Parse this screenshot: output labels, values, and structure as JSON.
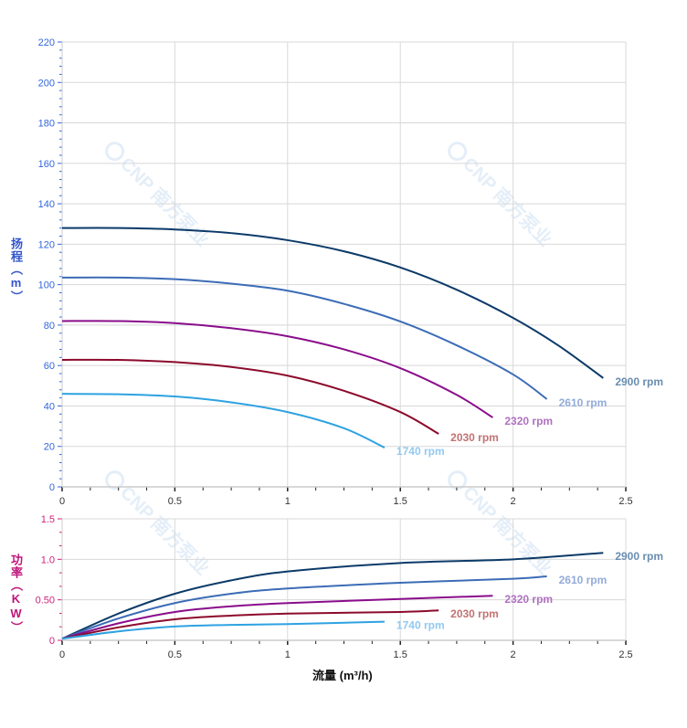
{
  "watermark": "CNP 南方泵业",
  "colors": {
    "grid": "#d8d8d8",
    "head_axis": "#3366dd",
    "power_axis": "#d0207a",
    "x_tick": "#333333"
  },
  "chart_data": [
    {
      "type": "line",
      "ylabel": "扬程（m）",
      "xlim": [
        0,
        2.5
      ],
      "ylim": [
        0,
        220
      ],
      "xticks": [
        "0",
        "0.5",
        "1",
        "1.5",
        "2",
        "2.5"
      ],
      "yticks": [
        "0",
        "20",
        "40",
        "60",
        "80",
        "100",
        "120",
        "140",
        "160",
        "180",
        "200",
        "220"
      ],
      "grid": true,
      "series": [
        {
          "name": "2900 rpm",
          "color": "#0b3a68",
          "label_color": "#6a8db0",
          "x": [
            0,
            0.25,
            0.5,
            0.75,
            1.0,
            1.25,
            1.5,
            1.75,
            2.0,
            2.2,
            2.4
          ],
          "y": [
            128,
            128,
            127.3,
            125.5,
            122,
            116.5,
            108.5,
            97.5,
            83.6,
            70,
            53.8
          ]
        },
        {
          "name": "2610 rpm",
          "color": "#3c6cb6",
          "label_color": "#93abd8",
          "x": [
            0,
            0.25,
            0.5,
            0.75,
            1.0,
            1.25,
            1.5,
            1.75,
            2.0,
            2.15
          ],
          "y": [
            103.5,
            103.5,
            102.7,
            100.5,
            97,
            90.5,
            81.8,
            70,
            55.6,
            43.4
          ]
        },
        {
          "name": "2320 rpm",
          "color": "#8a0c8c",
          "label_color": "#b071c0",
          "x": [
            0,
            0.25,
            0.5,
            0.75,
            1.0,
            1.25,
            1.5,
            1.75,
            1.91
          ],
          "y": [
            82,
            82,
            81,
            78.5,
            74.5,
            68,
            58.7,
            45.5,
            34.3
          ]
        },
        {
          "name": "2030 rpm",
          "color": "#8c0a2c",
          "label_color": "#c27272",
          "x": [
            0,
            0.25,
            0.5,
            0.75,
            1.0,
            1.25,
            1.5,
            1.67
          ],
          "y": [
            62.8,
            62.8,
            61.7,
            59.3,
            55,
            47.5,
            37,
            26.2
          ]
        },
        {
          "name": "1740 rpm",
          "color": "#2ea2e2",
          "label_color": "#92c9f0",
          "x": [
            0,
            0.25,
            0.5,
            0.75,
            1.0,
            1.25,
            1.43
          ],
          "y": [
            46,
            45.8,
            44.7,
            41.8,
            37,
            29,
            19.4
          ]
        }
      ]
    },
    {
      "type": "line",
      "xlabel": "流量 (m³/h)",
      "ylabel": "功率（KW）",
      "xlim": [
        0,
        2.5
      ],
      "ylim": [
        0,
        1.5
      ],
      "xticks": [
        "0",
        "0.5",
        "1",
        "1.5",
        "2",
        "2.5"
      ],
      "yticks": [
        "0",
        "0.50",
        "1.0",
        "1.5"
      ],
      "grid": true,
      "series": [
        {
          "name": "2900 rpm",
          "color": "#0b3a68",
          "label_color": "#6a8db0",
          "x": [
            0,
            0.25,
            0.5,
            0.75,
            1.0,
            1.5,
            2.0,
            2.4
          ],
          "y": [
            0.02,
            0.33,
            0.575,
            0.74,
            0.85,
            0.955,
            1.0,
            1.08
          ]
        },
        {
          "name": "2610 rpm",
          "color": "#3c6cb6",
          "label_color": "#93abd8",
          "x": [
            0,
            0.25,
            0.5,
            0.75,
            1.0,
            1.5,
            2.0,
            2.15
          ],
          "y": [
            0.02,
            0.27,
            0.46,
            0.575,
            0.64,
            0.71,
            0.76,
            0.79
          ]
        },
        {
          "name": "2320 rpm",
          "color": "#8a0c8c",
          "label_color": "#b071c0",
          "x": [
            0,
            0.25,
            0.5,
            0.75,
            1.0,
            1.5,
            1.91
          ],
          "y": [
            0.02,
            0.21,
            0.35,
            0.42,
            0.46,
            0.51,
            0.55
          ]
        },
        {
          "name": "2030 rpm",
          "color": "#8c0a2c",
          "label_color": "#c27272",
          "x": [
            0,
            0.25,
            0.5,
            0.75,
            1.0,
            1.5,
            1.67
          ],
          "y": [
            0.02,
            0.16,
            0.26,
            0.305,
            0.33,
            0.35,
            0.37
          ]
        },
        {
          "name": "1740 rpm",
          "color": "#2ea2e2",
          "label_color": "#92c9f0",
          "x": [
            0,
            0.25,
            0.5,
            0.75,
            1.0,
            1.43
          ],
          "y": [
            0.02,
            0.11,
            0.17,
            0.19,
            0.2,
            0.23
          ]
        }
      ]
    }
  ]
}
